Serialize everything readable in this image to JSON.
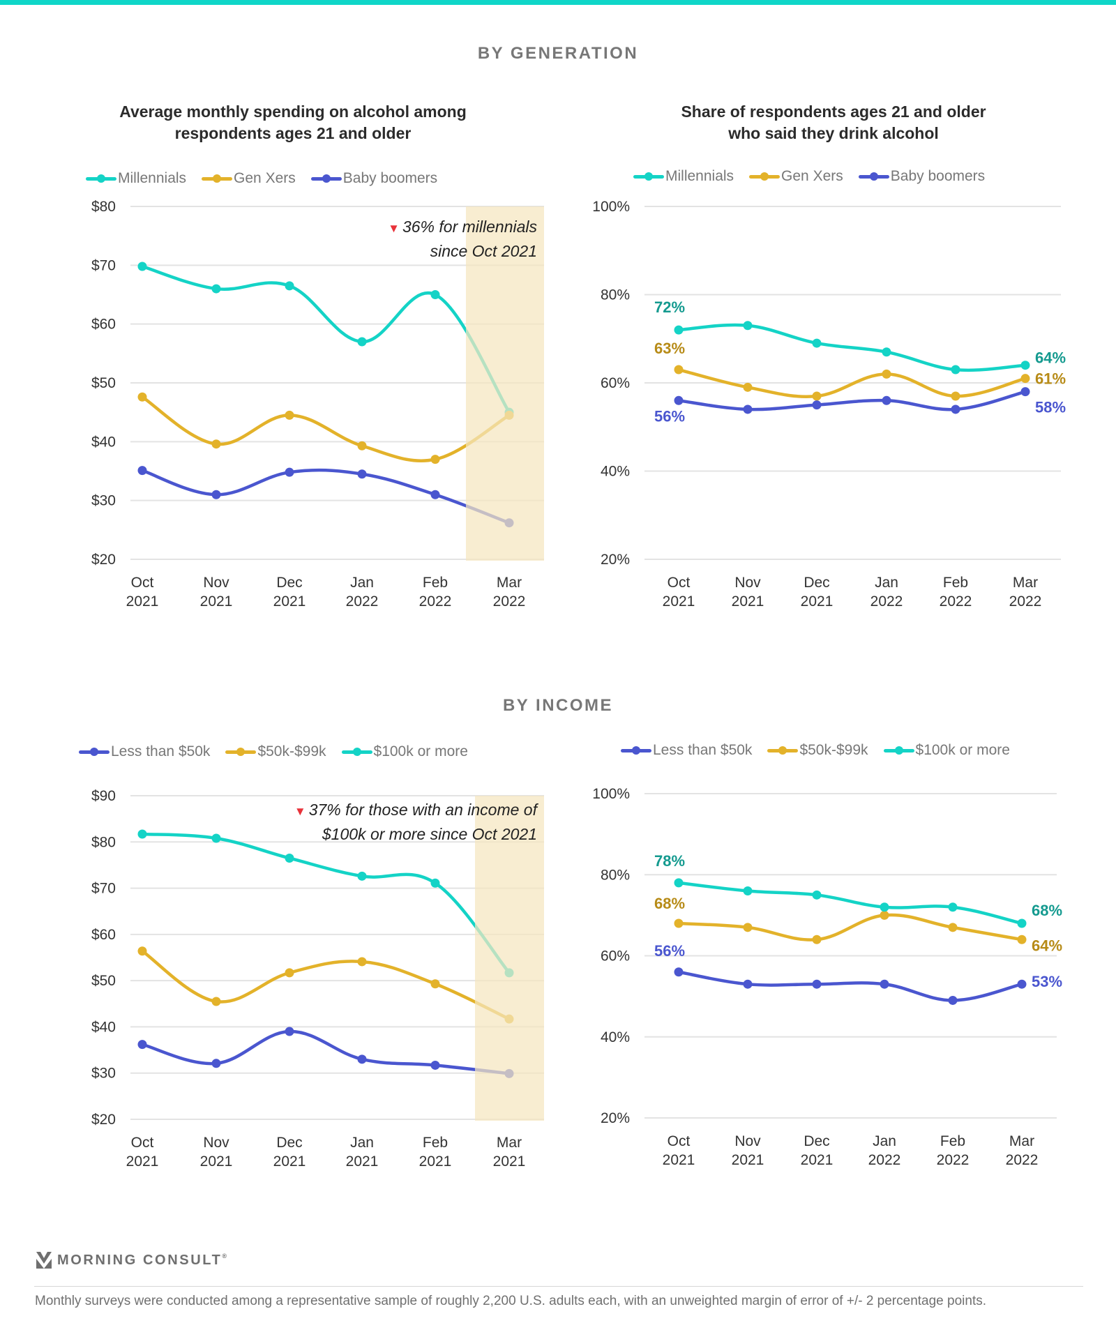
{
  "colors": {
    "teal": "#14d3c6",
    "gold": "#e3b22a",
    "blue": "#4a56cf",
    "teal_label": "#149a8f",
    "gold_label": "#b78b17",
    "blue_label": "#4a56cf",
    "highlight": "#f5e6bf",
    "down_arrow": "#e8323a"
  },
  "sections": {
    "generation": "BY GENERATION",
    "income": "BY INCOME"
  },
  "footer": {
    "logo": "MORNING CONSULT",
    "registered": "®",
    "note": "Monthly surveys were conducted among a representative sample of roughly 2,200 U.S. adults each, with an unweighted margin of error of +/- 2 percentage points."
  },
  "chart_data": [
    {
      "id": "gen-spending",
      "type": "line",
      "title": "Average monthly spending on alcohol among respondents ages 21 and older",
      "title_lines": [
        "Average monthly spending on alcohol among",
        "respondents ages 21 and older"
      ],
      "xlabel": "",
      "ylabel": "",
      "categories": [
        "Oct 2021",
        "Nov 2021",
        "Dec 2021",
        "Jan 2022",
        "Feb 2022",
        "Mar 2022"
      ],
      "x_tick_lines": [
        [
          "Oct",
          "2021"
        ],
        [
          "Nov",
          "2021"
        ],
        [
          "Dec",
          "2021"
        ],
        [
          "Jan",
          "2022"
        ],
        [
          "Feb",
          "2022"
        ],
        [
          "Mar",
          "2022"
        ]
      ],
      "ylim": [
        20,
        80
      ],
      "y_ticks": [
        20,
        30,
        40,
        50,
        60,
        70,
        80
      ],
      "y_tick_labels": [
        "$20",
        "$30",
        "$40",
        "$50",
        "$60",
        "$70",
        "$80"
      ],
      "grid": true,
      "legend": "top",
      "highlight_category": "Mar 2022",
      "annotation": {
        "lines": [
          "36% for millennials",
          "since Oct 2021"
        ],
        "marker": "▼"
      },
      "series": [
        {
          "name": "Millennials",
          "color": "teal",
          "values": [
            69.8,
            66.0,
            66.5,
            57.0,
            65.0,
            45.0
          ]
        },
        {
          "name": "Gen Xers",
          "color": "gold",
          "values": [
            47.6,
            39.6,
            44.5,
            39.3,
            37.0,
            44.5
          ]
        },
        {
          "name": "Baby boomers",
          "color": "blue",
          "values": [
            35.1,
            31.0,
            34.8,
            34.5,
            31.0,
            26.2
          ]
        }
      ]
    },
    {
      "id": "gen-share",
      "type": "line",
      "title": "Share of respondents ages 21 and older who said they drink alcohol",
      "title_lines": [
        "Share of respondents ages 21 and older",
        "who said they drink alcohol"
      ],
      "xlabel": "",
      "ylabel": "",
      "categories": [
        "Oct 2021",
        "Nov 2021",
        "Dec 2021",
        "Jan 2022",
        "Feb 2022",
        "Mar 2022"
      ],
      "x_tick_lines": [
        [
          "Oct",
          "2021"
        ],
        [
          "Nov",
          "2021"
        ],
        [
          "Dec",
          "2021"
        ],
        [
          "Jan",
          "2022"
        ],
        [
          "Feb",
          "2022"
        ],
        [
          "Mar",
          "2022"
        ]
      ],
      "ylim": [
        20,
        100
      ],
      "y_ticks": [
        20,
        40,
        60,
        80,
        100
      ],
      "y_tick_labels": [
        "20%",
        "40%",
        "60%",
        "80%",
        "100%"
      ],
      "grid": true,
      "legend": "top",
      "series": [
        {
          "name": "Millennials",
          "color": "teal",
          "values": [
            72,
            73,
            69,
            67,
            63,
            64
          ],
          "start_label": "72%",
          "end_label": "64%"
        },
        {
          "name": "Gen Xers",
          "color": "gold",
          "values": [
            63,
            59,
            57,
            62,
            57,
            61
          ],
          "start_label": "63%",
          "end_label": "61%"
        },
        {
          "name": "Baby boomers",
          "color": "blue",
          "values": [
            56,
            54,
            55,
            56,
            54,
            58
          ],
          "start_label": "56%",
          "end_label": "58%"
        }
      ]
    },
    {
      "id": "income-spending",
      "type": "line",
      "title": "",
      "title_lines": [],
      "xlabel": "",
      "ylabel": "",
      "categories": [
        "Oct 2021",
        "Nov 2021",
        "Dec 2021",
        "Jan 2021",
        "Feb 2021",
        "Mar 2021"
      ],
      "x_tick_lines": [
        [
          "Oct",
          "2021"
        ],
        [
          "Nov",
          "2021"
        ],
        [
          "Dec",
          "2021"
        ],
        [
          "Jan",
          "2021"
        ],
        [
          "Feb",
          "2021"
        ],
        [
          "Mar",
          "2021"
        ]
      ],
      "ylim": [
        20,
        90
      ],
      "y_ticks": [
        20,
        30,
        40,
        50,
        60,
        70,
        80,
        90
      ],
      "y_tick_labels": [
        "$20",
        "$30",
        "$40",
        "$50",
        "$60",
        "$70",
        "$80",
        "$90"
      ],
      "grid": true,
      "legend": "top",
      "highlight_category": "Mar 2021",
      "annotation": {
        "lines": [
          "37% for those with an income of",
          "$100k or more since Oct 2021"
        ],
        "marker": "▼"
      },
      "series": [
        {
          "name": "Less than $50k",
          "color": "blue",
          "values": [
            36.2,
            32.1,
            39.0,
            33.0,
            31.7,
            29.9
          ]
        },
        {
          "name": "$50k-$99k",
          "color": "gold",
          "values": [
            56.4,
            45.5,
            51.7,
            54.1,
            49.3,
            41.7
          ]
        },
        {
          "name": "$100k or more",
          "color": "teal",
          "values": [
            81.7,
            80.8,
            76.5,
            72.6,
            71.1,
            51.7
          ]
        }
      ]
    },
    {
      "id": "income-share",
      "type": "line",
      "title": "",
      "title_lines": [],
      "xlabel": "",
      "ylabel": "",
      "categories": [
        "Oct 2021",
        "Nov 2021",
        "Dec 2021",
        "Jan 2022",
        "Feb 2022",
        "Mar 2022"
      ],
      "x_tick_lines": [
        [
          "Oct",
          "2021"
        ],
        [
          "Nov",
          "2021"
        ],
        [
          "Dec",
          "2021"
        ],
        [
          "Jan",
          "2022"
        ],
        [
          "Feb",
          "2022"
        ],
        [
          "Mar",
          "2022"
        ]
      ],
      "ylim": [
        20,
        100
      ],
      "y_ticks": [
        20,
        40,
        60,
        80,
        100
      ],
      "y_tick_labels": [
        "20%",
        "40%",
        "60%",
        "80%",
        "100%"
      ],
      "grid": true,
      "legend": "top",
      "series": [
        {
          "name": "Less than $50k",
          "color": "blue",
          "values": [
            56,
            53,
            53,
            53,
            49,
            53
          ],
          "start_label": "56%",
          "end_label": "53%"
        },
        {
          "name": "$50k-$99k",
          "color": "gold",
          "values": [
            68,
            67,
            64,
            70,
            67,
            64
          ],
          "start_label": "68%",
          "end_label": "64%"
        },
        {
          "name": "$100k or more",
          "color": "teal",
          "values": [
            78,
            76,
            75,
            72,
            72,
            68
          ],
          "start_label": "78%",
          "end_label": "68%"
        }
      ]
    }
  ]
}
